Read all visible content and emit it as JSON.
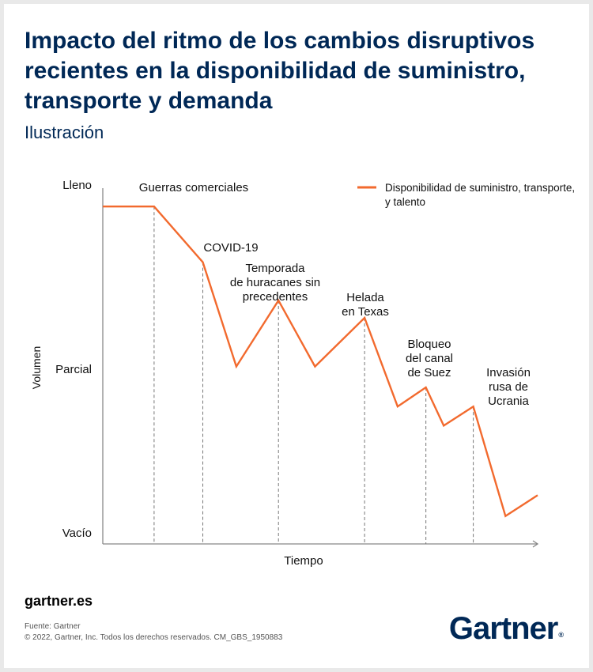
{
  "header": {
    "title": "Impacto del ritmo de los cambios disruptivos recientes en la disponibilidad de suministro, transporte y demanda",
    "subtitle": "Ilustración"
  },
  "footer": {
    "site": "gartner.es",
    "source": "Fuente: Gartner",
    "copyright": "© 2022, Gartner, Inc. Todos los derechos reservados. CM_GBS_1950883",
    "logo": "Gartner",
    "logo_mark": "®"
  },
  "colors": {
    "title": "#002856",
    "series": "#f26a2e",
    "axis": "#888888",
    "dash": "#777777"
  },
  "chart_data": {
    "type": "line",
    "xlabel": "Tiempo",
    "ylabel": "Volumen",
    "y_ticks": [
      {
        "label": "Lleno",
        "value": 100
      },
      {
        "label": "Parcial",
        "value": 50
      },
      {
        "label": "Vacío",
        "value": 0
      }
    ],
    "ylim": [
      0,
      100
    ],
    "xlim": [
      0,
      100
    ],
    "grid": false,
    "legend": "top-right",
    "series": [
      {
        "name": "Disponibilidad de suministro, transporte y talento",
        "x": [
          0,
          11.8,
          23,
          30.7,
          40.4,
          48.8,
          60.2,
          67.8,
          74.3,
          78.4,
          85.2,
          92.6,
          100
        ],
        "y": [
          97,
          97,
          81,
          51,
          70,
          51,
          65,
          39.5,
          45,
          34,
          39.5,
          8,
          14
        ]
      }
    ],
    "events": [
      {
        "x": 11.8,
        "label": [
          "Guerras comerciales"
        ]
      },
      {
        "x": 23,
        "label": [
          "COVID-19"
        ]
      },
      {
        "x": 40.4,
        "label": [
          "Temporada",
          "de huracanes sin",
          "precedentes"
        ]
      },
      {
        "x": 60.2,
        "label": [
          "Helada",
          "en Texas"
        ]
      },
      {
        "x": 74.3,
        "label": [
          "Bloqueo",
          "del canal",
          "de Suez"
        ]
      },
      {
        "x": 85.2,
        "label": [
          "Invasión",
          "rusa de",
          "Ucrania"
        ]
      }
    ]
  }
}
